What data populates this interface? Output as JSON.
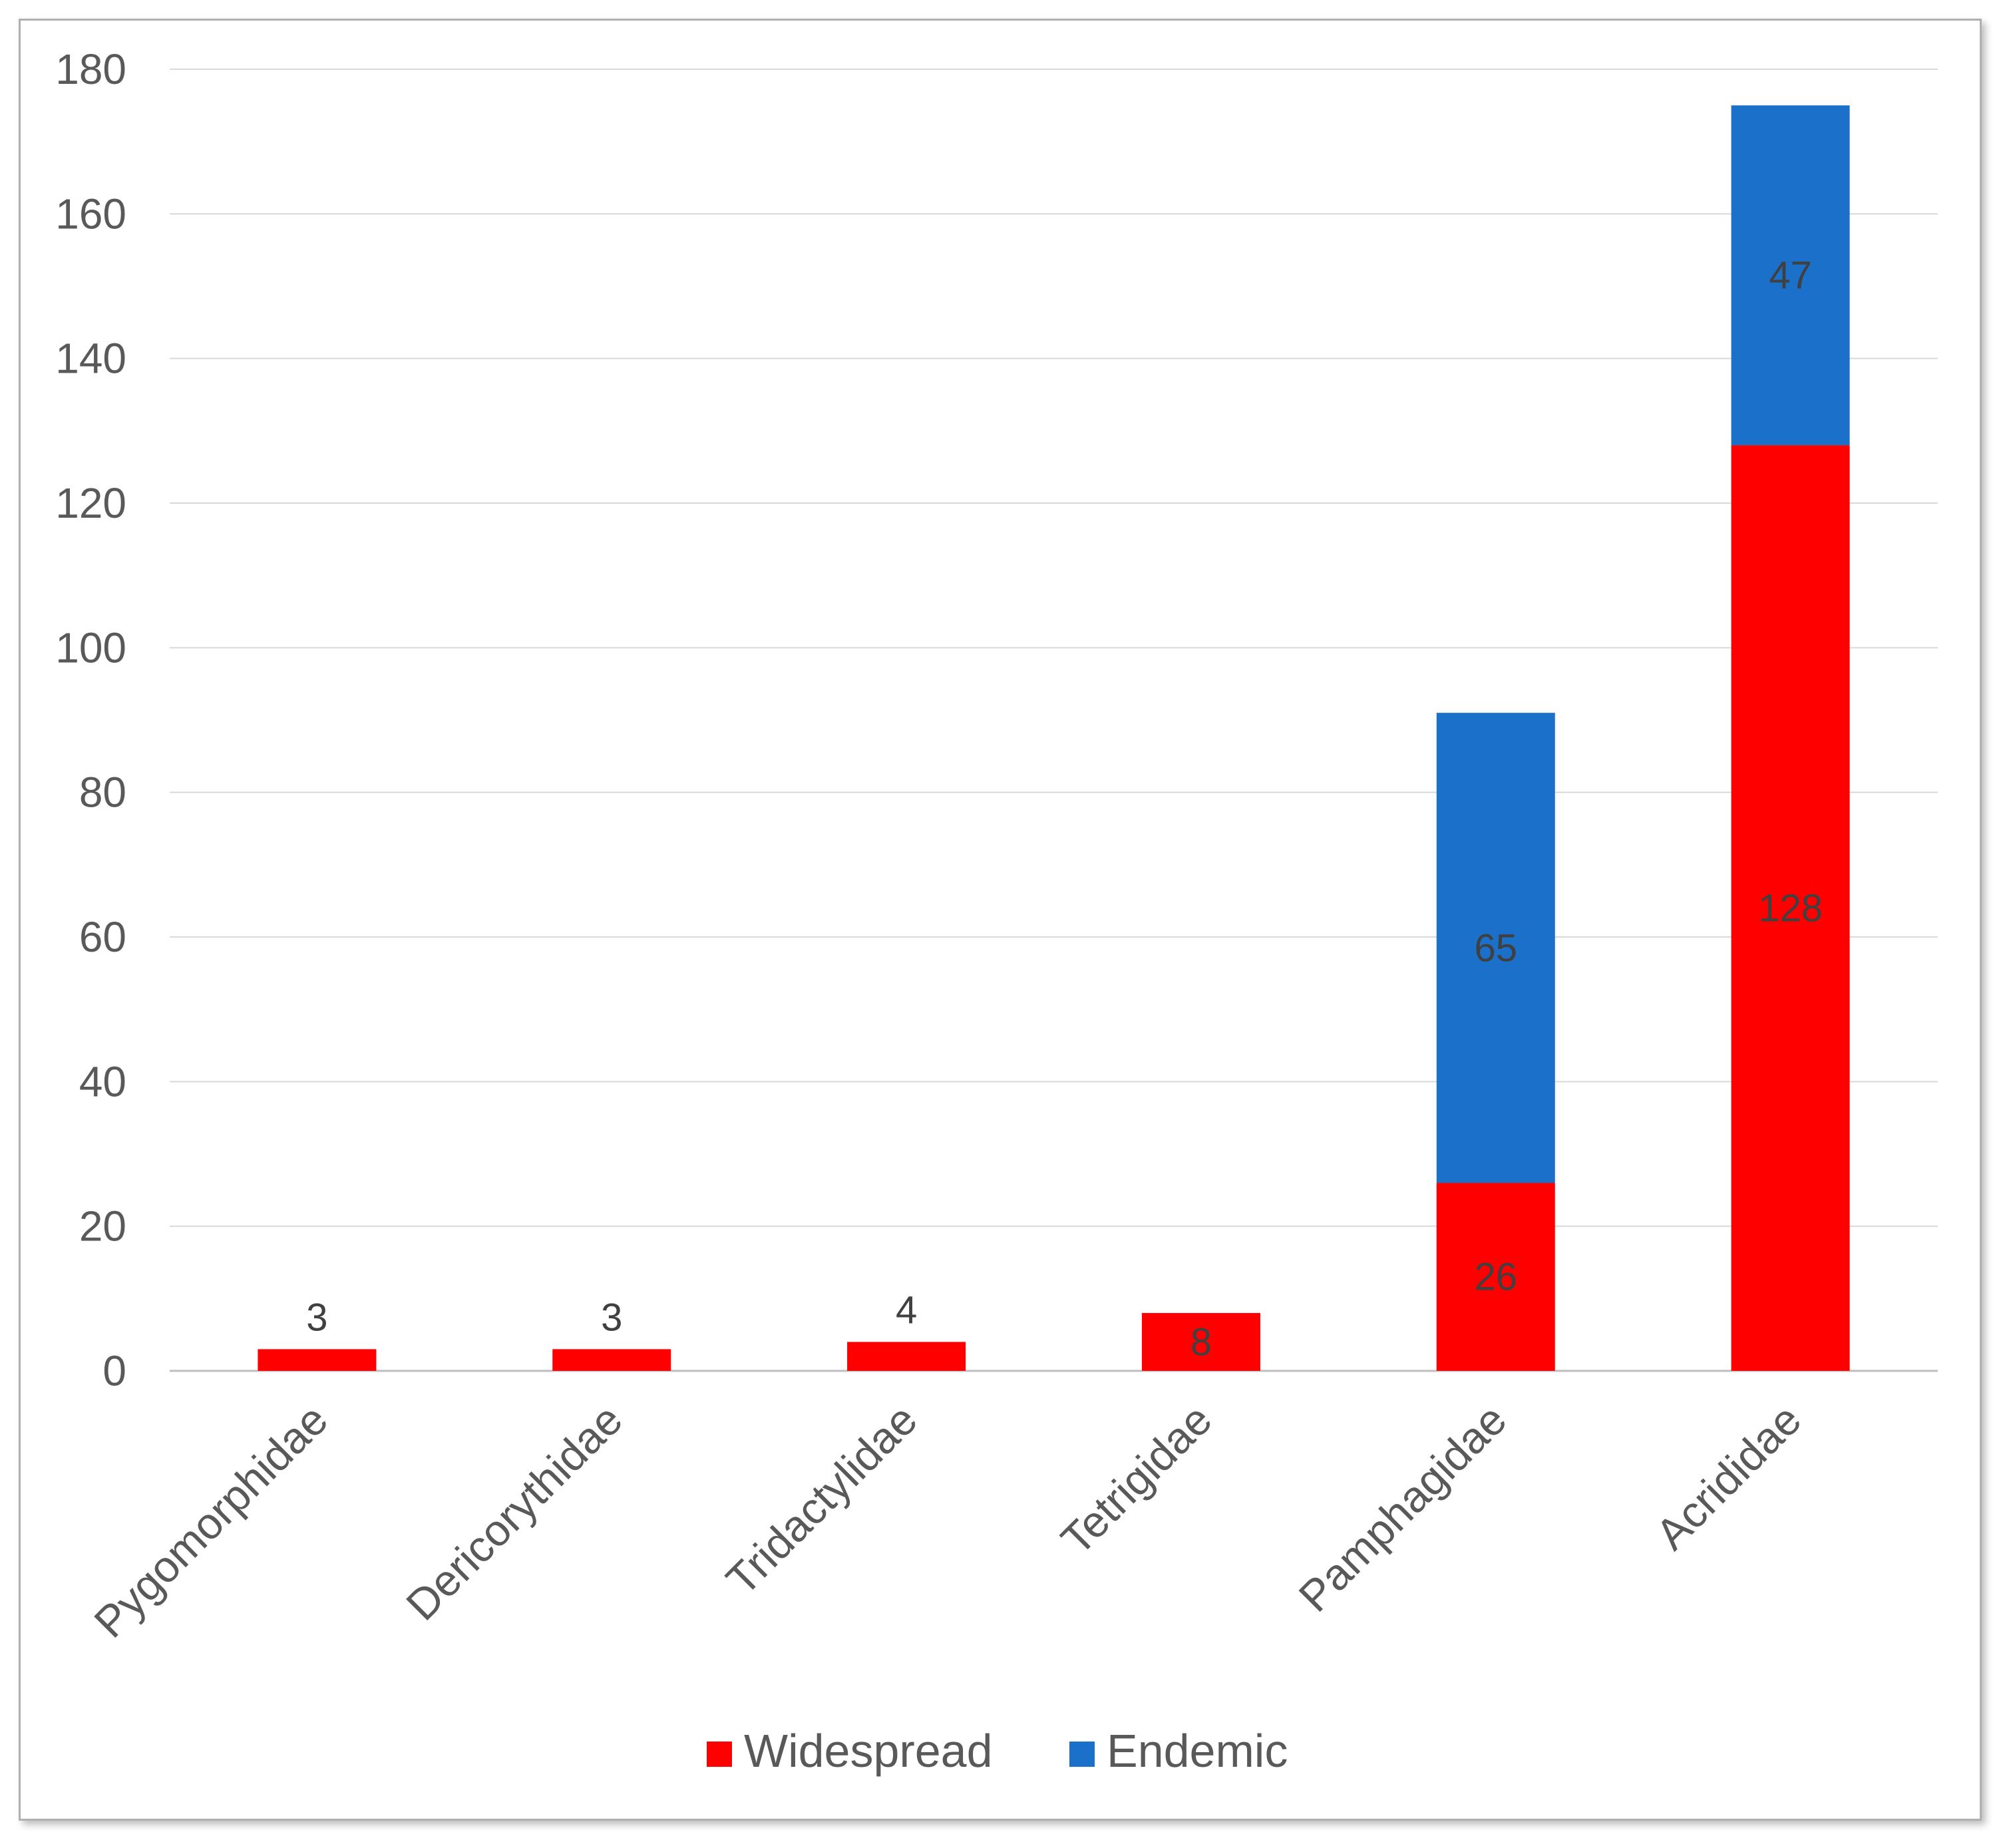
{
  "colors": {
    "widespread": "#ff0000",
    "endemic": "#1b70c9"
  },
  "chart_data": {
    "type": "bar",
    "stacked": true,
    "title": "",
    "xlabel": "",
    "ylabel": "",
    "ylim": [
      0,
      180
    ],
    "yticks": [
      0,
      20,
      40,
      60,
      80,
      100,
      120,
      140,
      160,
      180
    ],
    "grid": true,
    "legend_position": "bottom",
    "categories": [
      "Pygomorphidae",
      "Dericorythidae",
      "Tridactylidae",
      "Tetrigidae",
      "Pamphagidae",
      "Acrididae"
    ],
    "series": [
      {
        "name": "Widespread",
        "color_key": "widespread",
        "values": [
          3,
          3,
          4,
          8,
          26,
          128
        ]
      },
      {
        "name": "Endemic",
        "color_key": "endemic",
        "values": [
          0,
          0,
          0,
          0,
          65,
          47
        ]
      }
    ]
  }
}
